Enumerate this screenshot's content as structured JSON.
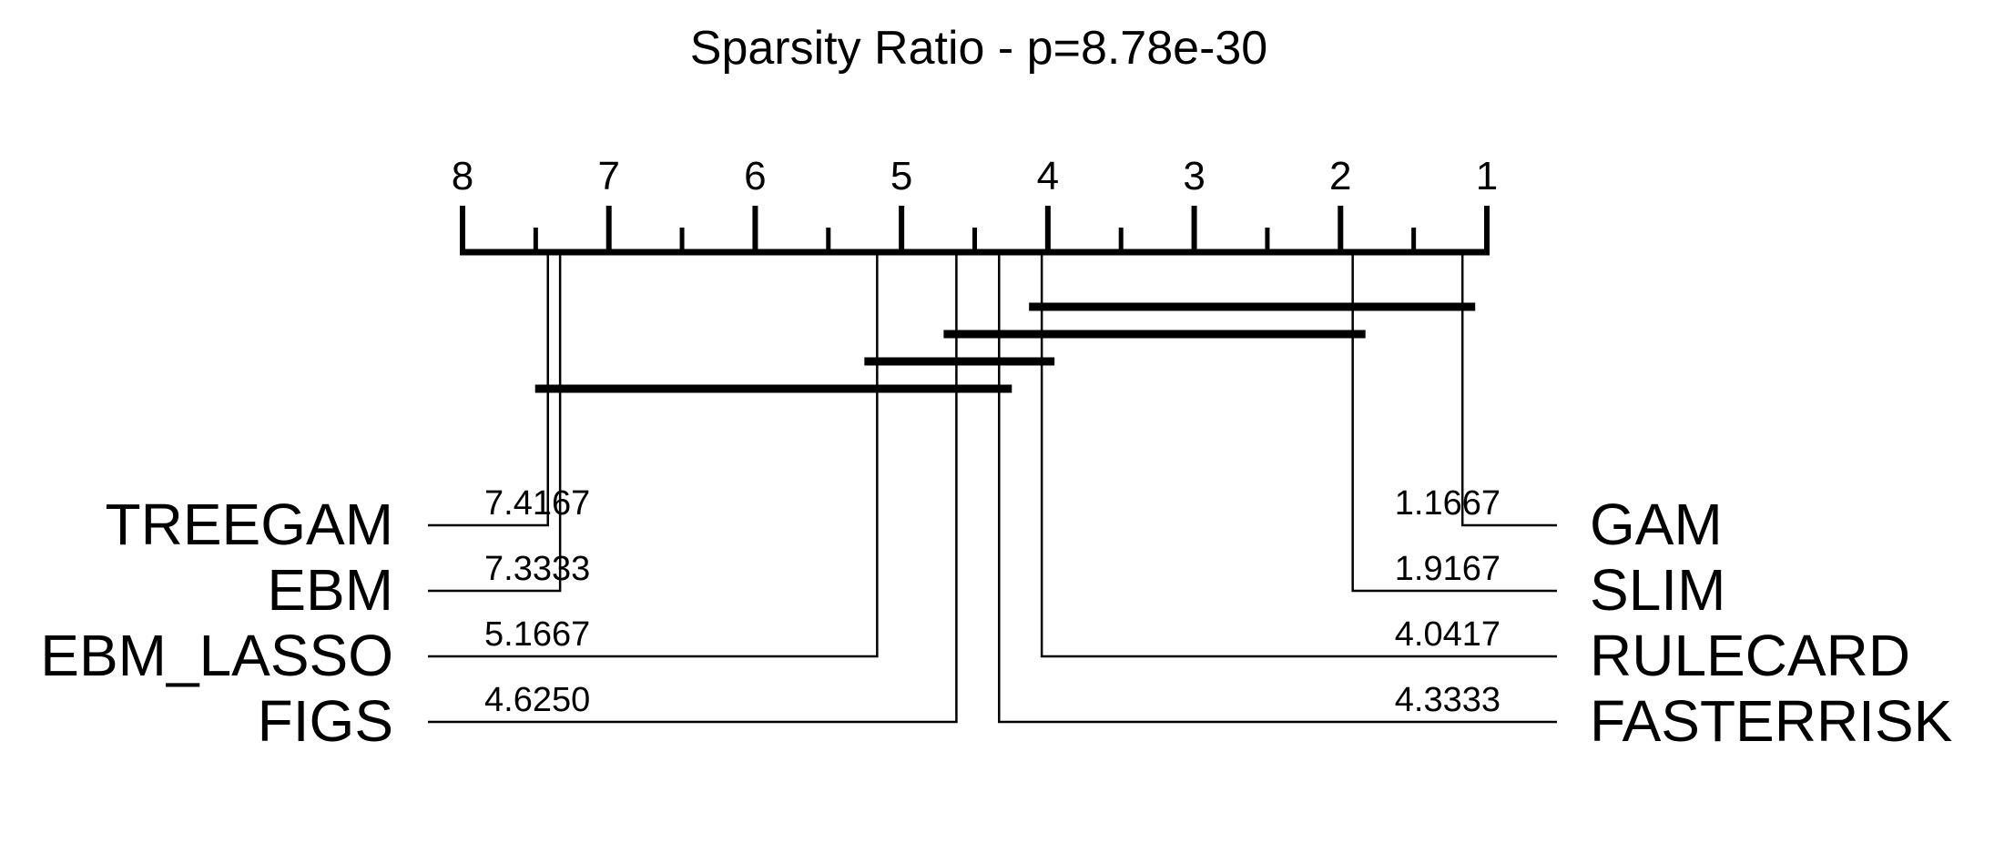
{
  "chart_data": {
    "type": "critical-difference-diagram",
    "title": "Sparsity Ratio - p=8.78e-30",
    "axis": {
      "range": [
        1,
        8
      ],
      "reversed": true,
      "major_ticks": [
        8,
        7,
        6,
        5,
        4,
        3,
        2,
        1
      ],
      "tick_labels": [
        "8",
        "7",
        "6",
        "5",
        "4",
        "3",
        "2",
        "1"
      ]
    },
    "left_methods": [
      {
        "name": "TREEGAM",
        "rank": 7.4167,
        "rank_label": "7.4167"
      },
      {
        "name": "EBM",
        "rank": 7.3333,
        "rank_label": "7.3333"
      },
      {
        "name": "EBM_LASSO",
        "rank": 5.1667,
        "rank_label": "5.1667"
      },
      {
        "name": "FIGS",
        "rank": 4.625,
        "rank_label": "4.6250"
      }
    ],
    "right_methods": [
      {
        "name": "GAM",
        "rank": 1.1667,
        "rank_label": "1.1667"
      },
      {
        "name": "SLIM",
        "rank": 1.9167,
        "rank_label": "1.9167"
      },
      {
        "name": "RULECARD",
        "rank": 4.0417,
        "rank_label": "4.0417"
      },
      {
        "name": "FASTERRISK",
        "rank": 4.3333,
        "rank_label": "4.3333"
      }
    ],
    "cliques": [
      {
        "from": 1.1667,
        "to": 4.0417
      },
      {
        "from": 1.9167,
        "to": 4.625
      },
      {
        "from": 4.0417,
        "to": 5.1667
      },
      {
        "from": 4.3333,
        "to": 7.4167
      }
    ]
  }
}
